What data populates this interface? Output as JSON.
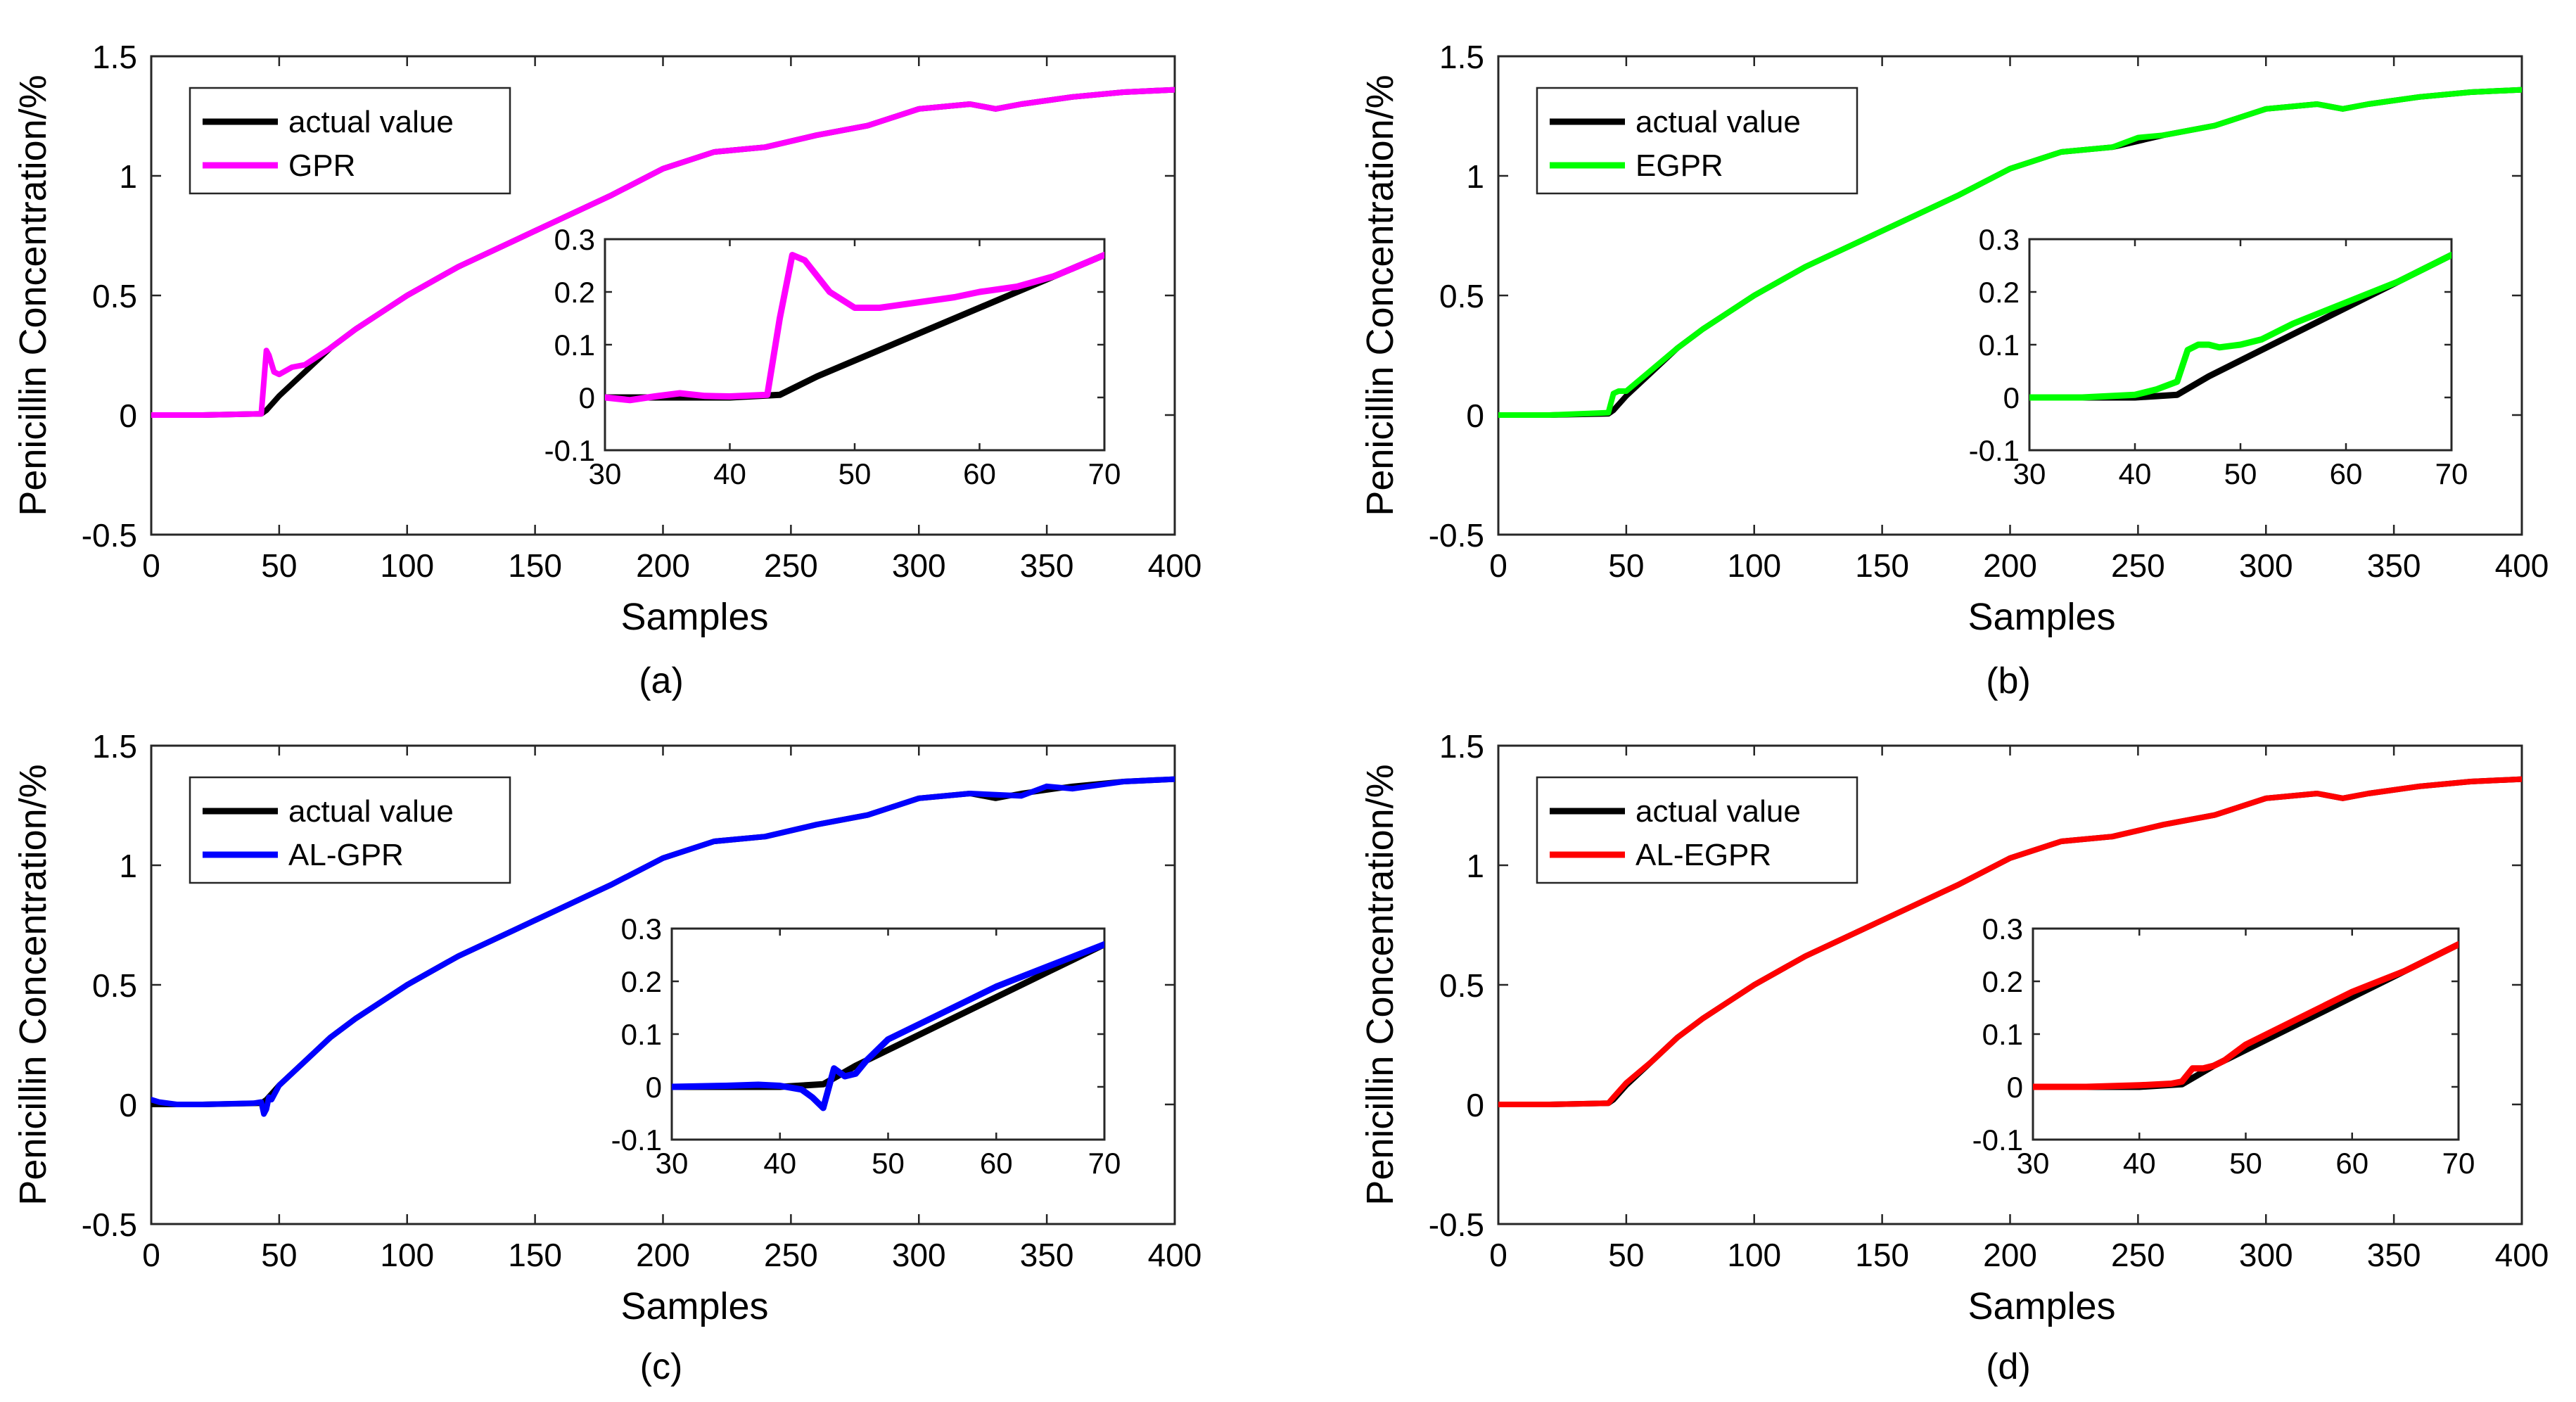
{
  "figure": {
    "subplots": [
      "(a)",
      "(b)",
      "(c)",
      "(d)"
    ]
  },
  "chart_data": [
    {
      "type": "line",
      "caption": "(a)",
      "xlabel": "Samples",
      "ylabel": "Penicillin Concentration/%",
      "xlim": [
        0,
        400
      ],
      "ylim": [
        -0.5,
        1.5
      ],
      "xticks": [
        0,
        50,
        100,
        150,
        200,
        250,
        300,
        350,
        400
      ],
      "yticks": [
        -0.5,
        0,
        0.5,
        1,
        1.5
      ],
      "ytick_labels": [
        "-0.5",
        "0",
        "0.5",
        "1",
        "1.5"
      ],
      "legend": {
        "position": "top-left",
        "entries": [
          "actual value",
          "GPR"
        ]
      },
      "series": [
        {
          "name": "actual value",
          "color": "#000000",
          "x": [
            0,
            20,
            43,
            45,
            50,
            60,
            70,
            80,
            90,
            100,
            120,
            140,
            160,
            180,
            200,
            220,
            240,
            260,
            280,
            300,
            320,
            330,
            340,
            360,
            380,
            400
          ],
          "values": [
            0,
            0,
            0.005,
            0.02,
            0.08,
            0.18,
            0.28,
            0.36,
            0.43,
            0.5,
            0.62,
            0.72,
            0.82,
            0.92,
            1.03,
            1.1,
            1.12,
            1.17,
            1.21,
            1.28,
            1.3,
            1.28,
            1.3,
            1.33,
            1.35,
            1.36
          ]
        },
        {
          "name": "GPR",
          "color": "#ff00ff",
          "x": [
            0,
            20,
            43,
            45,
            46,
            48,
            50,
            55,
            60,
            70,
            80,
            90,
            100,
            120,
            140,
            160,
            180,
            200,
            220,
            240,
            260,
            280,
            300,
            320,
            330,
            340,
            360,
            380,
            400
          ],
          "values": [
            0,
            0,
            0.005,
            0.27,
            0.25,
            0.18,
            0.17,
            0.2,
            0.21,
            0.28,
            0.36,
            0.43,
            0.5,
            0.62,
            0.72,
            0.82,
            0.92,
            1.03,
            1.1,
            1.12,
            1.17,
            1.21,
            1.28,
            1.3,
            1.28,
            1.3,
            1.33,
            1.35,
            1.36
          ]
        }
      ],
      "inset": {
        "xlim": [
          30,
          70
        ],
        "ylim": [
          -0.1,
          0.3
        ],
        "xticks": [
          30,
          40,
          50,
          60,
          70
        ],
        "yticks": [
          -0.1,
          0,
          0.1,
          0.2,
          0.3
        ],
        "ytick_labels": [
          "-0.1",
          "0",
          "0.1",
          "0.2",
          "0.3"
        ],
        "series": [
          {
            "name": "actual value",
            "color": "#000000",
            "x": [
              30,
              40,
              44,
              47,
              50,
              55,
              60,
              65,
              70
            ],
            "values": [
              0,
              0,
              0.005,
              0.04,
              0.07,
              0.12,
              0.17,
              0.22,
              0.27
            ]
          },
          {
            "name": "GPR",
            "color": "#ff00ff",
            "x": [
              30,
              32,
              34,
              36,
              38,
              40,
              43,
              44,
              45,
              46,
              48,
              50,
              52,
              55,
              58,
              60,
              63,
              66,
              70
            ],
            "values": [
              0,
              -0.005,
              0.002,
              0.008,
              0.003,
              0.002,
              0.005,
              0.15,
              0.27,
              0.26,
              0.2,
              0.17,
              0.17,
              0.18,
              0.19,
              0.2,
              0.21,
              0.23,
              0.27
            ]
          }
        ]
      }
    },
    {
      "type": "line",
      "caption": "(b)",
      "xlabel": "Samples",
      "ylabel": "Penicillin Concentration/%",
      "xlim": [
        0,
        400
      ],
      "ylim": [
        -0.5,
        1.5
      ],
      "xticks": [
        0,
        50,
        100,
        150,
        200,
        250,
        300,
        350,
        400
      ],
      "yticks": [
        -0.5,
        0,
        0.5,
        1,
        1.5
      ],
      "ytick_labels": [
        "-0.5",
        "0",
        "0.5",
        "1",
        "1.5"
      ],
      "legend": {
        "position": "top-left",
        "entries": [
          "actual value",
          "EGPR"
        ]
      },
      "series": [
        {
          "name": "actual value",
          "color": "#000000",
          "x": [
            0,
            20,
            43,
            45,
            50,
            60,
            70,
            80,
            90,
            100,
            120,
            140,
            160,
            180,
            200,
            220,
            240,
            260,
            280,
            300,
            320,
            330,
            340,
            360,
            380,
            400
          ],
          "values": [
            0,
            0,
            0.005,
            0.02,
            0.08,
            0.18,
            0.28,
            0.36,
            0.43,
            0.5,
            0.62,
            0.72,
            0.82,
            0.92,
            1.03,
            1.1,
            1.12,
            1.17,
            1.21,
            1.28,
            1.3,
            1.28,
            1.3,
            1.33,
            1.35,
            1.36
          ]
        },
        {
          "name": "EGPR",
          "color": "#00ff00",
          "x": [
            0,
            20,
            43,
            45,
            47,
            50,
            60,
            70,
            80,
            90,
            100,
            120,
            140,
            160,
            180,
            200,
            220,
            240,
            250,
            260,
            280,
            300,
            320,
            330,
            340,
            360,
            380,
            400
          ],
          "values": [
            0,
            0,
            0.01,
            0.09,
            0.1,
            0.1,
            0.19,
            0.28,
            0.36,
            0.43,
            0.5,
            0.62,
            0.72,
            0.82,
            0.92,
            1.03,
            1.1,
            1.12,
            1.16,
            1.17,
            1.21,
            1.28,
            1.3,
            1.28,
            1.3,
            1.33,
            1.35,
            1.36
          ]
        }
      ],
      "inset": {
        "xlim": [
          30,
          70
        ],
        "ylim": [
          -0.1,
          0.3
        ],
        "xticks": [
          30,
          40,
          50,
          60,
          70
        ],
        "yticks": [
          -0.1,
          0,
          0.1,
          0.2,
          0.3
        ],
        "ytick_labels": [
          "-0.1",
          "0",
          "0.1",
          "0.2",
          "0.3"
        ],
        "series": [
          {
            "name": "actual value",
            "color": "#000000",
            "x": [
              30,
              40,
              44,
              47,
              50,
              55,
              60,
              65,
              70
            ],
            "values": [
              0,
              0,
              0.005,
              0.04,
              0.07,
              0.12,
              0.17,
              0.22,
              0.27
            ]
          },
          {
            "name": "EGPR",
            "color": "#00ff00",
            "x": [
              30,
              35,
              40,
              42,
              44,
              45,
              46,
              47,
              48,
              50,
              52,
              55,
              60,
              65,
              70
            ],
            "values": [
              0,
              0,
              0.005,
              0.015,
              0.03,
              0.09,
              0.1,
              0.1,
              0.095,
              0.1,
              0.11,
              0.14,
              0.18,
              0.22,
              0.27
            ]
          }
        ]
      }
    },
    {
      "type": "line",
      "caption": "(c)",
      "xlabel": "Samples",
      "ylabel": "Penicillin Concentration/%",
      "xlim": [
        0,
        400
      ],
      "ylim": [
        -0.5,
        1.5
      ],
      "xticks": [
        0,
        50,
        100,
        150,
        200,
        250,
        300,
        350,
        400
      ],
      "yticks": [
        -0.5,
        0,
        0.5,
        1,
        1.5
      ],
      "ytick_labels": [
        "-0.5",
        "0",
        "0.5",
        "1",
        "1.5"
      ],
      "legend": {
        "position": "top-left",
        "entries": [
          "actual value",
          "AL-GPR"
        ]
      },
      "series": [
        {
          "name": "actual value",
          "color": "#000000",
          "x": [
            0,
            20,
            43,
            45,
            50,
            60,
            70,
            80,
            90,
            100,
            120,
            140,
            160,
            180,
            200,
            220,
            240,
            260,
            280,
            300,
            320,
            330,
            340,
            360,
            380,
            400
          ],
          "values": [
            0,
            0,
            0.005,
            0.02,
            0.08,
            0.18,
            0.28,
            0.36,
            0.43,
            0.5,
            0.62,
            0.72,
            0.82,
            0.92,
            1.03,
            1.1,
            1.12,
            1.17,
            1.21,
            1.28,
            1.3,
            1.28,
            1.3,
            1.33,
            1.35,
            1.36
          ]
        },
        {
          "name": "AL-GPR",
          "color": "#0000ff",
          "x": [
            0,
            3,
            10,
            20,
            40,
            43,
            44,
            45,
            46,
            47,
            50,
            60,
            70,
            80,
            90,
            100,
            120,
            140,
            160,
            180,
            200,
            220,
            240,
            260,
            280,
            300,
            320,
            340,
            345,
            350,
            360,
            380,
            400
          ],
          "values": [
            0.02,
            0.01,
            0,
            0,
            0.005,
            0.01,
            -0.04,
            -0.02,
            0.03,
            0.02,
            0.08,
            0.18,
            0.28,
            0.36,
            0.43,
            0.5,
            0.62,
            0.72,
            0.82,
            0.92,
            1.03,
            1.1,
            1.12,
            1.17,
            1.21,
            1.28,
            1.3,
            1.29,
            1.31,
            1.33,
            1.32,
            1.35,
            1.36
          ]
        }
      ],
      "inset": {
        "xlim": [
          30,
          70
        ],
        "ylim": [
          -0.1,
          0.3
        ],
        "xticks": [
          30,
          40,
          50,
          60,
          70
        ],
        "yticks": [
          -0.1,
          0,
          0.1,
          0.2,
          0.3
        ],
        "ytick_labels": [
          "-0.1",
          "0",
          "0.1",
          "0.2",
          "0.3"
        ],
        "series": [
          {
            "name": "actual value",
            "color": "#000000",
            "x": [
              30,
              40,
              44,
              47,
              50,
              55,
              60,
              65,
              70
            ],
            "values": [
              0,
              0,
              0.005,
              0.04,
              0.07,
              0.12,
              0.17,
              0.22,
              0.27
            ]
          },
          {
            "name": "AL-GPR",
            "color": "#0000ff",
            "x": [
              30,
              35,
              38,
              40,
              42,
              43,
              44,
              45,
              46,
              47,
              48,
              50,
              55,
              60,
              65,
              70
            ],
            "values": [
              0,
              0.002,
              0.004,
              0.002,
              -0.005,
              -0.02,
              -0.04,
              0.035,
              0.02,
              0.025,
              0.05,
              0.09,
              0.14,
              0.19,
              0.23,
              0.27
            ]
          }
        ]
      }
    },
    {
      "type": "line",
      "caption": "(d)",
      "xlabel": "Samples",
      "ylabel": "Penicillin Concentration/%",
      "xlim": [
        0,
        400
      ],
      "ylim": [
        -0.5,
        1.5
      ],
      "xticks": [
        0,
        50,
        100,
        150,
        200,
        250,
        300,
        350,
        400
      ],
      "yticks": [
        -0.5,
        0,
        0.5,
        1,
        1.5
      ],
      "ytick_labels": [
        "-0.5",
        "0",
        "0.5",
        "1",
        "1.5"
      ],
      "legend": {
        "position": "top-left",
        "entries": [
          "actual value",
          "AL-EGPR"
        ]
      },
      "series": [
        {
          "name": "actual value",
          "color": "#000000",
          "x": [
            0,
            20,
            43,
            45,
            50,
            60,
            70,
            80,
            90,
            100,
            120,
            140,
            160,
            180,
            200,
            220,
            240,
            260,
            280,
            300,
            320,
            330,
            340,
            360,
            380,
            400
          ],
          "values": [
            0,
            0,
            0.005,
            0.02,
            0.08,
            0.18,
            0.28,
            0.36,
            0.43,
            0.5,
            0.62,
            0.72,
            0.82,
            0.92,
            1.03,
            1.1,
            1.12,
            1.17,
            1.21,
            1.28,
            1.3,
            1.28,
            1.3,
            1.33,
            1.35,
            1.36
          ]
        },
        {
          "name": "AL-EGPR",
          "color": "#ff0000",
          "x": [
            0,
            20,
            43,
            45,
            50,
            60,
            70,
            80,
            90,
            100,
            120,
            140,
            160,
            180,
            200,
            220,
            240,
            260,
            280,
            300,
            320,
            330,
            340,
            360,
            380,
            400
          ],
          "values": [
            0,
            0,
            0.005,
            0.03,
            0.09,
            0.18,
            0.28,
            0.36,
            0.43,
            0.5,
            0.62,
            0.72,
            0.82,
            0.92,
            1.03,
            1.1,
            1.12,
            1.17,
            1.21,
            1.28,
            1.3,
            1.28,
            1.3,
            1.33,
            1.35,
            1.36
          ]
        }
      ],
      "inset": {
        "xlim": [
          30,
          70
        ],
        "ylim": [
          -0.1,
          0.3
        ],
        "xticks": [
          30,
          40,
          50,
          60,
          70
        ],
        "yticks": [
          -0.1,
          0,
          0.1,
          0.2,
          0.3
        ],
        "ytick_labels": [
          "-0.1",
          "0",
          "0.1",
          "0.2",
          "0.3"
        ],
        "series": [
          {
            "name": "actual value",
            "color": "#000000",
            "x": [
              30,
              40,
              44,
              47,
              50,
              55,
              60,
              65,
              70
            ],
            "values": [
              0,
              0,
              0.005,
              0.04,
              0.07,
              0.12,
              0.17,
              0.22,
              0.27
            ]
          },
          {
            "name": "AL-EGPR",
            "color": "#ff0000",
            "x": [
              30,
              35,
              40,
              43,
              44,
              45,
              46,
              47,
              48,
              50,
              55,
              60,
              65,
              70
            ],
            "values": [
              0,
              0,
              0.003,
              0.006,
              0.01,
              0.035,
              0.035,
              0.04,
              0.05,
              0.08,
              0.13,
              0.18,
              0.22,
              0.27
            ]
          }
        ]
      }
    }
  ]
}
